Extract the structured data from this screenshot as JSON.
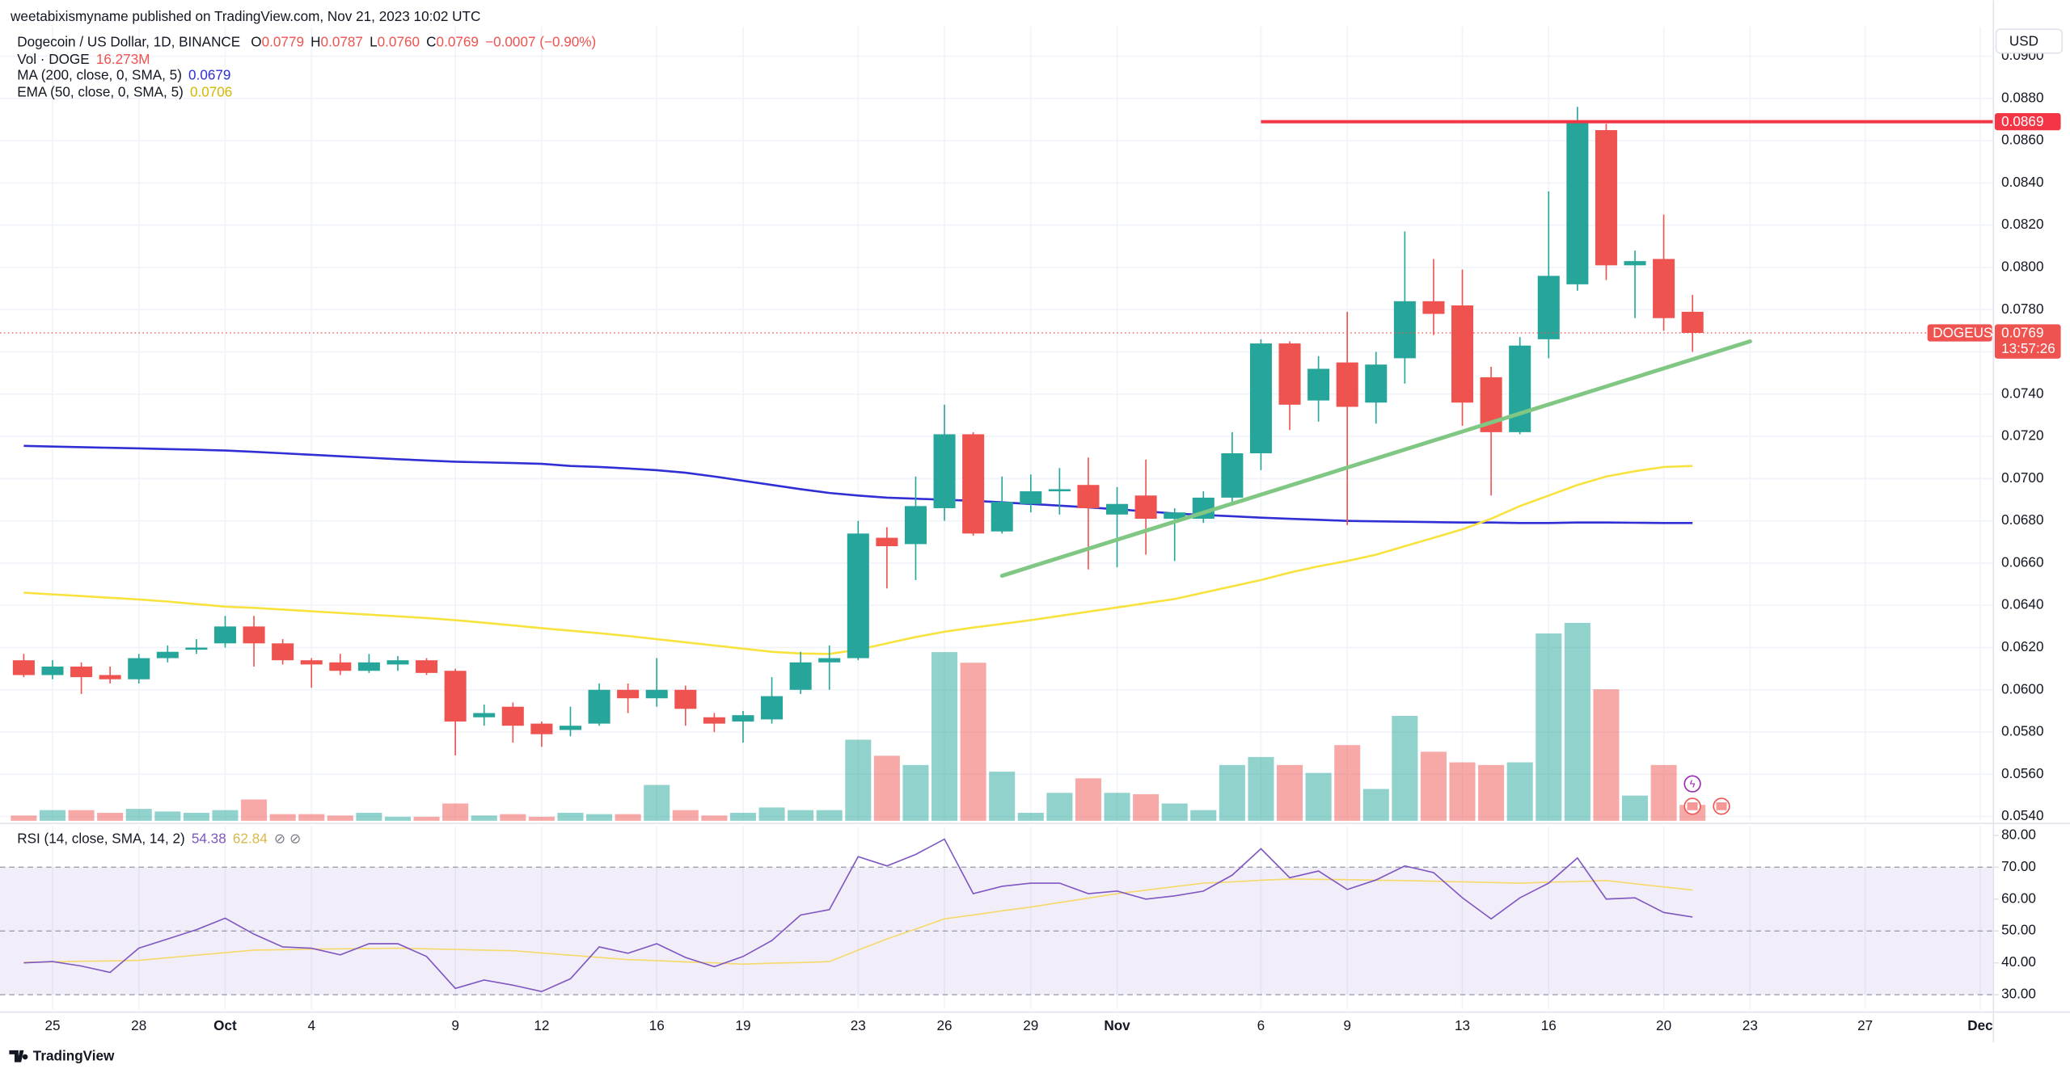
{
  "published": "weetabixismyname published on TradingView.com, Nov 21, 2023 10:02 UTC",
  "brand": "TradingView",
  "chart_data": {
    "type": "candlestick",
    "title": "Dogecoin / US Dollar, 1D, BINANCE",
    "ohlc_header": [
      {
        "key": "O",
        "label": "0.0779"
      },
      {
        "key": "H",
        "label": "0.0787"
      },
      {
        "key": "L",
        "label": "0.0760"
      },
      {
        "key": "C",
        "label": "0.0769"
      }
    ],
    "change_label": "−0.0007 (−0.90%)",
    "axis_currency": "USD",
    "up_color": "#26a69a",
    "down_color": "#ef5350",
    "grid": true,
    "x": [
      "2023-09-24",
      "2023-09-25",
      "2023-09-26",
      "2023-09-27",
      "2023-09-28",
      "2023-09-29",
      "2023-09-30",
      "2023-10-01",
      "2023-10-02",
      "2023-10-03",
      "2023-10-04",
      "2023-10-05",
      "2023-10-06",
      "2023-10-07",
      "2023-10-08",
      "2023-10-09",
      "2023-10-10",
      "2023-10-11",
      "2023-10-12",
      "2023-10-13",
      "2023-10-14",
      "2023-10-15",
      "2023-10-16",
      "2023-10-17",
      "2023-10-18",
      "2023-10-19",
      "2023-10-20",
      "2023-10-21",
      "2023-10-22",
      "2023-10-23",
      "2023-10-24",
      "2023-10-25",
      "2023-10-26",
      "2023-10-27",
      "2023-10-28",
      "2023-10-29",
      "2023-10-30",
      "2023-10-31",
      "2023-11-01",
      "2023-11-02",
      "2023-11-03",
      "2023-11-04",
      "2023-11-05",
      "2023-11-06",
      "2023-11-07",
      "2023-11-08",
      "2023-11-09",
      "2023-11-10",
      "2023-11-11",
      "2023-11-12",
      "2023-11-13",
      "2023-11-14",
      "2023-11-15",
      "2023-11-16",
      "2023-11-17",
      "2023-11-18",
      "2023-11-19",
      "2023-11-20",
      "2023-11-21"
    ],
    "xlim": [
      "2023-09-23T04:10Z",
      "2023-12-01T11:00Z"
    ],
    "xticks": [
      {
        "value": "2023-09-25",
        "label": "25"
      },
      {
        "value": "2023-09-28",
        "label": "28"
      },
      {
        "value": "2023-10-01",
        "label": "Oct"
      },
      {
        "value": "2023-10-04",
        "label": "4"
      },
      {
        "value": "2023-10-09",
        "label": "9"
      },
      {
        "value": "2023-10-12",
        "label": "12"
      },
      {
        "value": "2023-10-16",
        "label": "16"
      },
      {
        "value": "2023-10-19",
        "label": "19"
      },
      {
        "value": "2023-10-23",
        "label": "23"
      },
      {
        "value": "2023-10-26",
        "label": "26"
      },
      {
        "value": "2023-10-29",
        "label": "29"
      },
      {
        "value": "2023-11-01",
        "label": "Nov"
      },
      {
        "value": "2023-11-06",
        "label": "6"
      },
      {
        "value": "2023-11-09",
        "label": "9"
      },
      {
        "value": "2023-11-13",
        "label": "13"
      },
      {
        "value": "2023-11-16",
        "label": "16"
      },
      {
        "value": "2023-11-20",
        "label": "20"
      },
      {
        "value": "2023-11-23",
        "label": "23"
      },
      {
        "value": "2023-11-27",
        "label": "27"
      },
      {
        "value": "2023-12-01",
        "label": "Dec"
      }
    ],
    "ylim": [
      0.0538,
      0.0914
    ],
    "yticks": [
      {
        "value": 0.054,
        "label": "0.0540"
      },
      {
        "value": 0.056,
        "label": "0.0560"
      },
      {
        "value": 0.058,
        "label": "0.0580"
      },
      {
        "value": 0.06,
        "label": "0.0600"
      },
      {
        "value": 0.062,
        "label": "0.0620"
      },
      {
        "value": 0.064,
        "label": "0.0640"
      },
      {
        "value": 0.066,
        "label": "0.0660"
      },
      {
        "value": 0.068,
        "label": "0.0680"
      },
      {
        "value": 0.07,
        "label": "0.0700"
      },
      {
        "value": 0.072,
        "label": "0.0720"
      },
      {
        "value": 0.074,
        "label": "0.0740"
      },
      {
        "value": 0.076,
        "label": "0.0760"
      },
      {
        "value": 0.078,
        "label": "0.0780"
      },
      {
        "value": 0.08,
        "label": "0.0800"
      },
      {
        "value": 0.082,
        "label": "0.0820"
      },
      {
        "value": 0.084,
        "label": "0.0840"
      },
      {
        "value": 0.086,
        "label": "0.0860"
      },
      {
        "value": 0.088,
        "label": "0.0880"
      },
      {
        "value": 0.09,
        "label": "0.0900"
      }
    ],
    "ohlc": {
      "open": [
        0.0614,
        0.0607,
        0.0611,
        0.0607,
        0.0605,
        0.0615,
        0.0619,
        0.0622,
        0.063,
        0.0622,
        0.0614,
        0.0613,
        0.0609,
        0.0612,
        0.0614,
        0.0609,
        0.0587,
        0.0592,
        0.0584,
        0.0581,
        0.0584,
        0.06,
        0.0596,
        0.06,
        0.0587,
        0.0585,
        0.0586,
        0.06,
        0.0613,
        0.0615,
        0.0672,
        0.0669,
        0.0686,
        0.0721,
        0.0675,
        0.0688,
        0.0694,
        0.0697,
        0.0683,
        0.0692,
        0.0681,
        0.0681,
        0.0691,
        0.0712,
        0.0764,
        0.0737,
        0.0755,
        0.0736,
        0.0757,
        0.0784,
        0.0782,
        0.0748,
        0.0722,
        0.0766,
        0.0792,
        0.0865,
        0.0801,
        0.0804,
        0.0779
      ],
      "high": [
        0.0617,
        0.0614,
        0.0613,
        0.0611,
        0.0617,
        0.0621,
        0.0624,
        0.0635,
        0.0635,
        0.0624,
        0.0615,
        0.0617,
        0.0617,
        0.0616,
        0.0615,
        0.061,
        0.0593,
        0.0594,
        0.0585,
        0.0592,
        0.0603,
        0.0603,
        0.0615,
        0.0602,
        0.0589,
        0.059,
        0.0606,
        0.0618,
        0.0621,
        0.068,
        0.0677,
        0.0701,
        0.0735,
        0.0722,
        0.0701,
        0.0702,
        0.0705,
        0.071,
        0.0696,
        0.0709,
        0.0686,
        0.0694,
        0.0722,
        0.0766,
        0.0765,
        0.0758,
        0.0779,
        0.076,
        0.0817,
        0.0804,
        0.0799,
        0.0753,
        0.0767,
        0.0836,
        0.0876,
        0.0868,
        0.0808,
        0.0825,
        0.0787
      ],
      "low": [
        0.0606,
        0.0605,
        0.0598,
        0.0603,
        0.0603,
        0.0613,
        0.0617,
        0.062,
        0.0611,
        0.0612,
        0.0601,
        0.0607,
        0.0608,
        0.0609,
        0.0607,
        0.0569,
        0.0583,
        0.0575,
        0.0573,
        0.0578,
        0.0583,
        0.0589,
        0.0592,
        0.0583,
        0.058,
        0.0575,
        0.0584,
        0.0598,
        0.06,
        0.0614,
        0.0648,
        0.0652,
        0.068,
        0.0673,
        0.0674,
        0.0684,
        0.0683,
        0.0657,
        0.0658,
        0.0664,
        0.0661,
        0.0679,
        0.0689,
        0.0704,
        0.0723,
        0.0727,
        0.0678,
        0.0726,
        0.0745,
        0.0768,
        0.0725,
        0.0692,
        0.0721,
        0.0757,
        0.0789,
        0.0794,
        0.0776,
        0.077,
        0.076
      ],
      "close": [
        0.0607,
        0.0611,
        0.0606,
        0.0605,
        0.0615,
        0.0618,
        0.062,
        0.063,
        0.0622,
        0.0614,
        0.0612,
        0.0609,
        0.0613,
        0.0614,
        0.0608,
        0.0585,
        0.0589,
        0.0583,
        0.0579,
        0.0583,
        0.06,
        0.0596,
        0.06,
        0.0591,
        0.0584,
        0.0588,
        0.0597,
        0.0613,
        0.0615,
        0.0674,
        0.0668,
        0.0687,
        0.0721,
        0.0674,
        0.0689,
        0.0694,
        0.0695,
        0.0686,
        0.0688,
        0.0681,
        0.0684,
        0.0691,
        0.0712,
        0.0764,
        0.0735,
        0.0752,
        0.0734,
        0.0754,
        0.0784,
        0.0778,
        0.0736,
        0.0722,
        0.0763,
        0.0796,
        0.0869,
        0.0801,
        0.0803,
        0.0776,
        0.0769
      ]
    },
    "volume": {
      "name": "Vol · DOGE",
      "value_label": "16.273M",
      "values": [
        5.4,
        10.9,
        10.9,
        8.2,
        12.2,
        9.5,
        8.2,
        10.9,
        21.8,
        6.8,
        6.8,
        5.4,
        8.2,
        4.1,
        4.1,
        17.7,
        5.4,
        6.8,
        4.1,
        8.2,
        6.8,
        6.8,
        36.7,
        10.9,
        5.4,
        8.2,
        13.6,
        10.9,
        10.9,
        83.0,
        66.6,
        57.1,
        172.7,
        161.8,
        50.3,
        8.2,
        28.6,
        43.5,
        28.6,
        27.2,
        17.7,
        10.9,
        57.1,
        65.3,
        57.1,
        49.0,
        77.5,
        32.6,
        107.4,
        70.7,
        59.8,
        57.1,
        59.8,
        191.8,
        202.6,
        134.6,
        25.8,
        57.1,
        16.273
      ]
    },
    "lines": [
      {
        "name": "MA (200, close, 0, SMA, 5)",
        "value_label": "0.0679",
        "color": "#2f2fd4",
        "values": [
          0.07155,
          0.07152,
          0.07149,
          0.07146,
          0.07143,
          0.0714,
          0.07137,
          0.07133,
          0.07127,
          0.0712,
          0.07113,
          0.07106,
          0.07099,
          0.07092,
          0.07086,
          0.0708,
          0.07077,
          0.07074,
          0.0707,
          0.0706,
          0.07055,
          0.07048,
          0.0704,
          0.07028,
          0.0701,
          0.0699,
          0.0697,
          0.0695,
          0.06932,
          0.0692,
          0.0691,
          0.06905,
          0.069,
          0.06895,
          0.06888,
          0.0688,
          0.06872,
          0.06864,
          0.06855,
          0.06845,
          0.06835,
          0.06828,
          0.06822,
          0.06815,
          0.0681,
          0.06805,
          0.068,
          0.06798,
          0.06796,
          0.06794,
          0.06792,
          0.06792,
          0.0679,
          0.0679,
          0.06792,
          0.06792,
          0.06791,
          0.0679,
          0.0679
        ]
      },
      {
        "name": "EMA (50, close, 0, SMA, 5)",
        "value_label": "0.0706",
        "color": "#f7e23e",
        "values": [
          0.0646,
          0.06452,
          0.06444,
          0.06436,
          0.06428,
          0.06418,
          0.06406,
          0.06394,
          0.06388,
          0.0638,
          0.06372,
          0.06364,
          0.06356,
          0.06348,
          0.0634,
          0.0633,
          0.06318,
          0.06305,
          0.06292,
          0.0628,
          0.06268,
          0.06255,
          0.0624,
          0.06225,
          0.0621,
          0.06195,
          0.0618,
          0.06172,
          0.0617,
          0.0619,
          0.0622,
          0.0625,
          0.06275,
          0.06295,
          0.06312,
          0.0633,
          0.0635,
          0.0637,
          0.0639,
          0.0641,
          0.0643,
          0.0646,
          0.0649,
          0.0652,
          0.06555,
          0.06585,
          0.0661,
          0.0664,
          0.0668,
          0.0672,
          0.0676,
          0.0681,
          0.0687,
          0.0692,
          0.0697,
          0.0701,
          0.07035,
          0.07055,
          0.0706
        ]
      }
    ],
    "hline": {
      "value": 0.0869,
      "label": "0.0869",
      "from": "2023-11-06",
      "color": "#f23645"
    },
    "trendline": {
      "color": "#81c784",
      "points": [
        {
          "x": "2023-10-28",
          "y": 0.0654
        },
        {
          "x": "2023-11-23",
          "y": 0.0765
        }
      ]
    },
    "last_price": {
      "symbol": "DOGEUSD",
      "label": "0.0769",
      "countdown": "13:57:26"
    },
    "rsi": {
      "type": "line",
      "name": "RSI (14, close, SMA, 14, 2)",
      "value_label": "54.38",
      "color": "#7e57c2",
      "values": [
        40.0,
        40.4,
        39.0,
        37.0,
        44.6,
        47.5,
        50.4,
        54.0,
        49.0,
        45.0,
        44.6,
        42.5,
        46.0,
        46.0,
        42.0,
        32.0,
        34.6,
        33.0,
        31.0,
        35.0,
        45.0,
        43.0,
        46.0,
        41.7,
        38.8,
        42.0,
        47.0,
        55.0,
        56.7,
        73.3,
        70.4,
        74.0,
        78.8,
        61.7,
        64.0,
        65.0,
        65.0,
        61.7,
        62.5,
        60.0,
        61.0,
        62.5,
        67.5,
        75.8,
        66.7,
        68.8,
        63.0,
        66.0,
        70.4,
        68.3,
        60.4,
        53.8,
        60.4,
        65.0,
        72.9,
        60.0,
        60.4,
        55.8,
        54.38
      ],
      "ma": {
        "value_label": "62.84",
        "color": "#f5d96b",
        "values": [
          40.2,
          40.3,
          40.5,
          40.6,
          40.8,
          41.6,
          42.4,
          43.2,
          44.0,
          44.1,
          44.3,
          44.4,
          44.5,
          44.6,
          44.4,
          44.2,
          44.0,
          43.8,
          43.1,
          42.4,
          41.7,
          41.0,
          40.7,
          40.3,
          40.0,
          39.6,
          39.9,
          40.1,
          40.4,
          44.0,
          47.5,
          50.6,
          53.8,
          55.0,
          56.3,
          57.5,
          58.9,
          60.3,
          61.7,
          62.8,
          63.9,
          65.0,
          65.4,
          65.9,
          66.3,
          66.2,
          66.1,
          65.9,
          65.8,
          65.6,
          65.4,
          65.2,
          65.0,
          65.3,
          65.5,
          65.8,
          64.8,
          63.8,
          62.84
        ]
      },
      "band": [
        30,
        70
      ],
      "midline": 50,
      "ylim": [
        25.4,
        82.9
      ],
      "yticks": [
        {
          "value": 30,
          "label": "30.00"
        },
        {
          "value": 40,
          "label": "40.00"
        },
        {
          "value": 50,
          "label": "50.00"
        },
        {
          "value": 60,
          "label": "60.00"
        },
        {
          "value": 70,
          "label": "70.00"
        },
        {
          "value": 80,
          "label": "80.00"
        }
      ]
    }
  }
}
